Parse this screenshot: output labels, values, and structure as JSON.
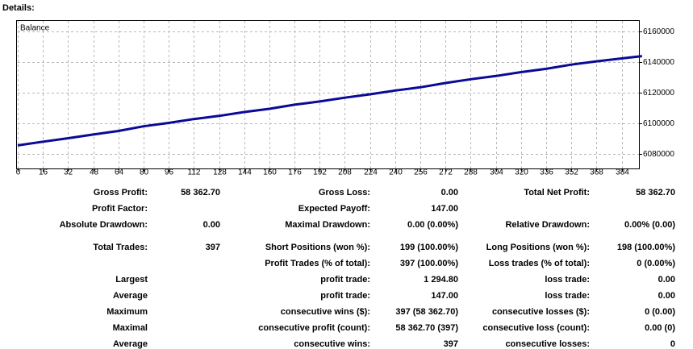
{
  "header": {
    "title": "Details:"
  },
  "chart_data": {
    "type": "line",
    "title": "Balance",
    "x": [
      0,
      16,
      32,
      48,
      64,
      80,
      96,
      112,
      128,
      144,
      160,
      176,
      192,
      208,
      224,
      240,
      256,
      272,
      288,
      304,
      320,
      336,
      352,
      368,
      384,
      397
    ],
    "series": [
      {
        "name": "Balance",
        "color": "#0a0a96",
        "values": [
          6085600,
          6088000,
          6090300,
          6092700,
          6095000,
          6098100,
          6100300,
          6102800,
          6104900,
          6107400,
          6109500,
          6112200,
          6114300,
          6116800,
          6119000,
          6121500,
          6123600,
          6126400,
          6128900,
          6131000,
          6133500,
          6135700,
          6138400,
          6140600,
          6142500,
          6144000
        ]
      }
    ],
    "xlim": [
      0,
      394
    ],
    "xticks": [
      0,
      16,
      32,
      48,
      64,
      80,
      96,
      112,
      128,
      144,
      160,
      176,
      192,
      208,
      224,
      240,
      256,
      272,
      288,
      304,
      320,
      336,
      352,
      368,
      384
    ],
    "ylim": [
      6070500,
      6167000
    ],
    "yticks": [
      6080000,
      6100000,
      6120000,
      6140000,
      6160000
    ],
    "grid": true
  },
  "table": {
    "rows": [
      [
        "Gross Profit:",
        "58 362.70",
        "Gross Loss:",
        "0.00",
        "Total Net Profit:",
        "58 362.70"
      ],
      [
        "Profit Factor:",
        null,
        "Expected Payoff:",
        "147.00",
        null,
        null
      ],
      [
        "Absolute Drawdown:",
        "0.00",
        "Maximal Drawdown:",
        "0.00 (0.00%)",
        "Relative Drawdown:",
        "0.00% (0.00)"
      ],
      [
        "Total Trades:",
        "397",
        "Short Positions (won %):",
        "199 (100.00%)",
        "Long Positions (won %):",
        "198 (100.00%)"
      ],
      [
        null,
        null,
        "Profit Trades (% of total):",
        "397 (100.00%)",
        "Loss trades (% of total):",
        "0 (0.00%)"
      ],
      [
        "Largest",
        null,
        "profit trade:",
        "1 294.80",
        "loss trade:",
        "0.00"
      ],
      [
        "Average",
        null,
        "profit trade:",
        "147.00",
        "loss trade:",
        "0.00"
      ],
      [
        "Maximum",
        null,
        "consecutive wins ($):",
        "397 (58 362.70)",
        "consecutive losses ($):",
        "0 (0.00)"
      ],
      [
        "Maximal",
        null,
        "consecutive profit (count):",
        "58 362.70 (397)",
        "consecutive loss (count):",
        "0.00 (0)"
      ],
      [
        "Average",
        null,
        "consecutive wins:",
        "397",
        "consecutive losses:",
        "0"
      ]
    ]
  }
}
